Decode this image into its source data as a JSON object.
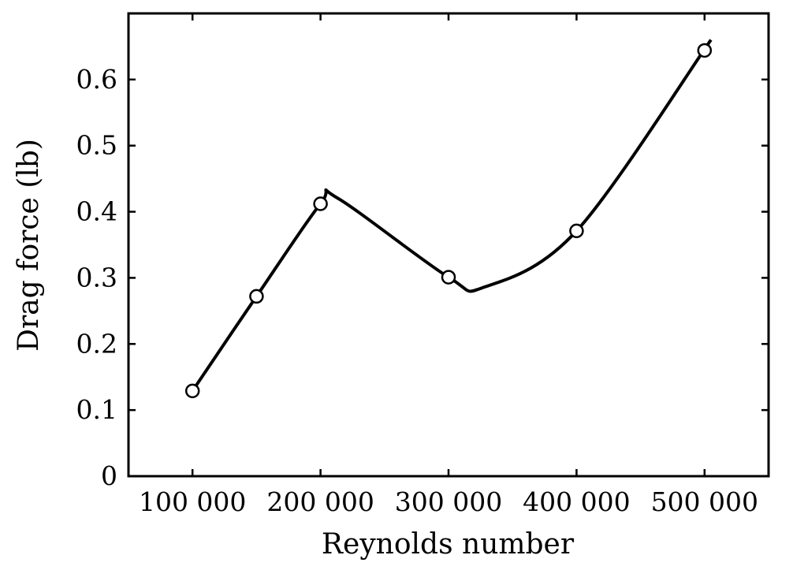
{
  "chart_data": {
    "type": "scatter",
    "title": "",
    "xlabel": "Reynolds number",
    "ylabel": "Drag force (lb)",
    "xlim": [
      50000,
      550000
    ],
    "ylim": [
      0,
      0.7
    ],
    "x_ticks": [
      100000,
      200000,
      300000,
      400000,
      500000
    ],
    "x_tick_labels": [
      "100 000",
      "200 000",
      "300 000",
      "400 000",
      "500 000"
    ],
    "y_ticks": [
      0,
      0.1,
      0.2,
      0.3,
      0.4,
      0.5,
      0.6
    ],
    "y_tick_labels": [
      "0",
      "0.1",
      "0.2",
      "0.3",
      "0.4",
      "0.5",
      "0.6"
    ],
    "grid": false,
    "legend": "none",
    "series": [
      {
        "kind": "points",
        "marker": "open-circle",
        "x": [
          100000,
          150000,
          200000,
          300000,
          400000,
          500000
        ],
        "y": [
          0.129,
          0.272,
          0.412,
          0.301,
          0.371,
          0.644
        ]
      },
      {
        "kind": "smooth-curve",
        "x": [
          100000,
          150000,
          200000,
          213000,
          300000,
          328000,
          400000,
          505000
        ],
        "y": [
          0.129,
          0.272,
          0.412,
          0.421,
          0.301,
          0.286,
          0.371,
          0.66
        ]
      }
    ],
    "colors": {
      "curve": "#000000",
      "marker_fill": "#ffffff",
      "marker_stroke": "#000000",
      "frame": "#000000"
    }
  }
}
